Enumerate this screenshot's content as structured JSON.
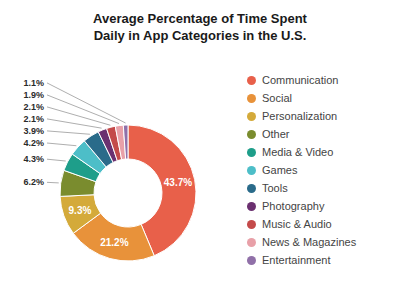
{
  "chart_data": {
    "type": "pie",
    "title": "Average Percentage of Time Spent\nDaily in App Categories in the U.S.",
    "categories": [
      "Communication",
      "Social",
      "Personalization",
      "Other",
      "Media & Video",
      "Games",
      "Tools",
      "Photography",
      "Music & Audio",
      "News & Magazines",
      "Entertainment"
    ],
    "values": [
      43.7,
      21.2,
      9.3,
      6.2,
      4.3,
      4.2,
      3.9,
      2.1,
      2.1,
      1.9,
      1.1
    ],
    "value_labels": [
      "43.7%",
      "21.2%",
      "9.3%",
      "6.2%",
      "4.3%",
      "4.2%",
      "3.9%",
      "2.1%",
      "2.1%",
      "1.9%",
      "1.1%"
    ],
    "colors": [
      "#E8604A",
      "#E8923A",
      "#D4AA3A",
      "#7A8C2E",
      "#1E9E8A",
      "#4DBEC8",
      "#2A6B8A",
      "#6B3070",
      "#C44A4A",
      "#E8A0A8",
      "#9070A8"
    ],
    "data_labels": true,
    "legend": "right"
  }
}
